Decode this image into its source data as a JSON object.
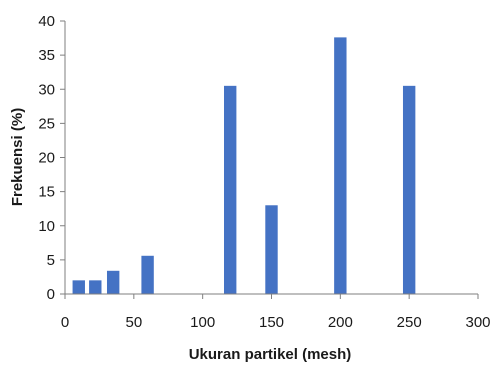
{
  "chart_data": {
    "type": "bar",
    "xlabel": "Ukuran partikel (mesh)",
    "ylabel": "Frekuensi (%)",
    "xlim": [
      0,
      300
    ],
    "ylim": [
      0,
      40
    ],
    "xticks": [
      0,
      50,
      100,
      150,
      200,
      250,
      300
    ],
    "yticks": [
      0,
      5,
      10,
      15,
      20,
      25,
      30,
      35,
      40
    ],
    "grid": false,
    "bar_width_data": 10,
    "series": [
      {
        "x": [
          10,
          22,
          35,
          60,
          120,
          150,
          200,
          250
        ],
        "values": [
          2.0,
          2.0,
          3.4,
          5.6,
          30.5,
          13.0,
          37.6,
          30.5
        ]
      }
    ],
    "colors": {
      "bar": "#4472C4",
      "axis": "#7f7f7f",
      "text": "#1a1a1a"
    }
  }
}
